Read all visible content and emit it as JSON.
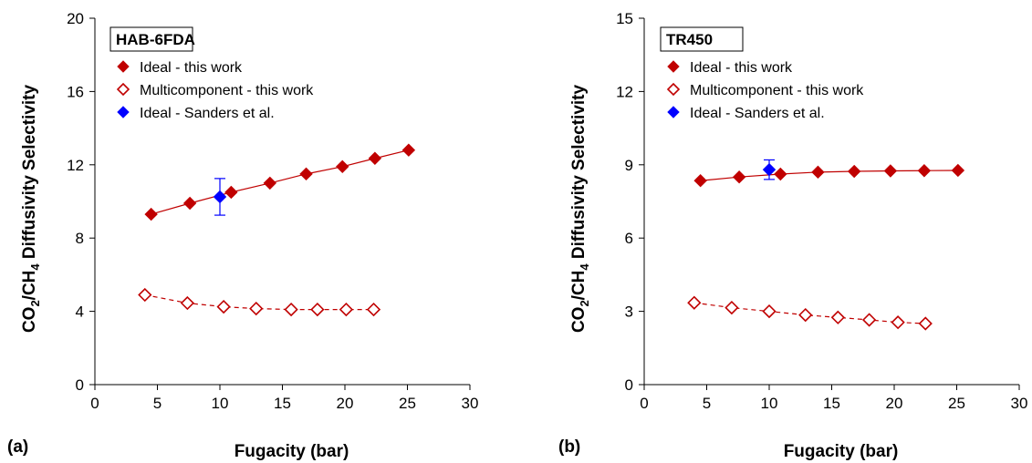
{
  "chart_data": [
    {
      "type": "scatter",
      "panel_tag": "(a)",
      "legend_title": "HAB-6FDA",
      "xlabel": "Fugacity (bar)",
      "ylabel": "CO2/CH4  Diffusivity Selectivity",
      "ylabel_parts": {
        "a": "CO",
        "a_sub": "2",
        "b": "/CH",
        "b_sub": "4",
        "c": "  Diffusivity Selectivity"
      },
      "xlim": [
        0,
        30
      ],
      "ylim": [
        0,
        20
      ],
      "xticks": [
        0,
        5,
        10,
        15,
        20,
        25,
        30
      ],
      "yticks": [
        0,
        4,
        8,
        12,
        16,
        20
      ],
      "grid": false,
      "legend_position": "top-left",
      "series": [
        {
          "name": "Ideal - this work",
          "marker": "diamond-filled",
          "color": "#c00000",
          "line": "solid",
          "x": [
            4.5,
            7.6,
            10.9,
            14.0,
            16.9,
            19.8,
            22.4,
            25.1
          ],
          "y": [
            9.3,
            9.9,
            10.5,
            11.0,
            11.5,
            11.9,
            12.35,
            12.8
          ]
        },
        {
          "name": "Multicomponent - this work",
          "marker": "diamond-open",
          "color": "#c00000",
          "line": "dashed",
          "x": [
            4.0,
            7.4,
            10.3,
            12.9,
            15.7,
            17.8,
            20.1,
            22.3
          ],
          "y": [
            4.9,
            4.45,
            4.25,
            4.15,
            4.1,
            4.1,
            4.1,
            4.1
          ]
        },
        {
          "name": "Ideal  - Sanders et al.",
          "marker": "diamond-filled",
          "color": "#0000ff",
          "line": "none",
          "x": [
            10.0
          ],
          "y": [
            10.25
          ],
          "error": [
            1.0
          ]
        }
      ]
    },
    {
      "type": "scatter",
      "panel_tag": "(b)",
      "legend_title": "TR450",
      "xlabel": "Fugacity (bar)",
      "ylabel": "CO2/CH4  Diffusivity Selectivity",
      "ylabel_parts": {
        "a": "CO",
        "a_sub": "2",
        "b": "/CH",
        "b_sub": "4",
        "c": "  Diffusivity Selectivity"
      },
      "xlim": [
        0,
        30
      ],
      "ylim": [
        0,
        15
      ],
      "xticks": [
        0,
        5,
        10,
        15,
        20,
        25,
        30
      ],
      "yticks": [
        0,
        3,
        6,
        9,
        12,
        15
      ],
      "grid": false,
      "legend_position": "top-left",
      "series": [
        {
          "name": "Ideal - this work",
          "marker": "diamond-filled",
          "color": "#c00000",
          "line": "solid",
          "x": [
            4.5,
            7.6,
            10.9,
            13.9,
            16.8,
            19.7,
            22.4,
            25.1
          ],
          "y": [
            8.35,
            8.5,
            8.62,
            8.7,
            8.73,
            8.75,
            8.76,
            8.77
          ]
        },
        {
          "name": "Multicomponent - this work",
          "marker": "diamond-open",
          "color": "#c00000",
          "line": "dashed",
          "x": [
            4.0,
            7.0,
            10.0,
            12.9,
            15.5,
            18.0,
            20.3,
            22.5
          ],
          "y": [
            3.35,
            3.15,
            3.0,
            2.85,
            2.75,
            2.65,
            2.55,
            2.5
          ]
        },
        {
          "name": "Ideal  - Sanders et al.",
          "marker": "diamond-filled",
          "color": "#0000ff",
          "line": "none",
          "x": [
            10.0
          ],
          "y": [
            8.8
          ],
          "error": [
            0.4
          ]
        }
      ]
    }
  ]
}
